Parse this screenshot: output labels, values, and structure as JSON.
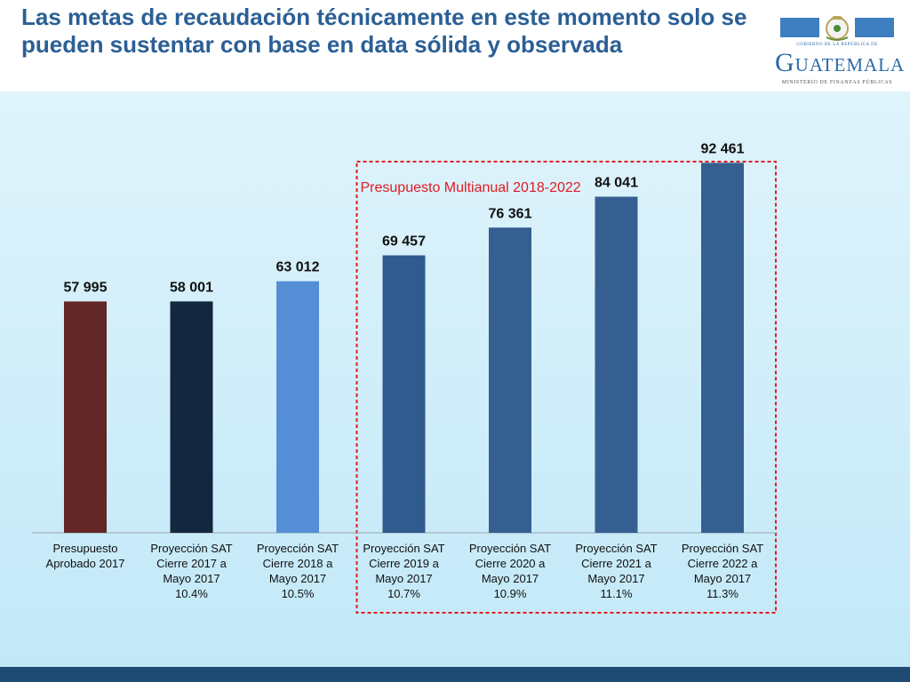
{
  "header": {
    "title": "Las metas de recaudación técnicamente en este momento solo se pueden sustentar con base en data sólida y observada",
    "logo_top": "GOBIERNO DE LA REPÚBLICA DE",
    "logo_name": "Guatemala",
    "logo_sub": "MINISTERIO DE FINANZAS PÚBLICAS"
  },
  "chart_data": {
    "type": "bar",
    "categories": [
      [
        "Presupuesto",
        "Aprobado 2017"
      ],
      [
        "Proyección SAT",
        "Cierre 2017 a",
        "Mayo 2017",
        "10.4%"
      ],
      [
        "Proyección SAT",
        "Cierre 2018 a",
        "Mayo 2017",
        "10.5%"
      ],
      [
        "Proyección SAT",
        "Cierre 2019 a",
        "Mayo 2017",
        "10.7%"
      ],
      [
        "Proyección SAT",
        "Cierre 2020 a",
        "Mayo 2017",
        "10.9%"
      ],
      [
        "Proyección SAT",
        "Cierre 2021 a",
        "Mayo 2017",
        "11.1%"
      ],
      [
        "Proyección SAT",
        "Cierre 2022 a",
        "Mayo 2017",
        "11.3%"
      ]
    ],
    "values": [
      57995,
      58001,
      63012,
      69457,
      76361,
      84041,
      92461
    ],
    "value_labels": [
      "57 995",
      "58 001",
      "63 012",
      "69 457",
      "76 361",
      "84 041",
      "92 461"
    ],
    "colors": [
      "#622626",
      "#13273f",
      "#558ed5",
      "#2f5b8e",
      "#365f91",
      "#365f91",
      "#365f91"
    ],
    "annotation": {
      "text": "Presupuesto Multianual 2018-2022",
      "color": "#e11b22",
      "from_index": 3,
      "to_index": 6
    },
    "ylim": [
      0,
      100000
    ],
    "grid": false,
    "legend": "none"
  }
}
